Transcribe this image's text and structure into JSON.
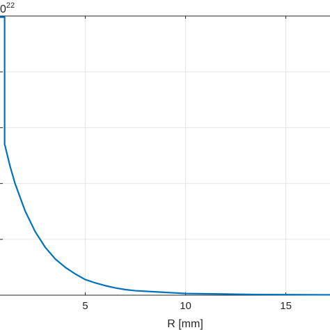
{
  "chart_data": {
    "type": "line",
    "title": "",
    "exponent_label_base": "0",
    "exponent_label_power": "22",
    "xlabel": "R [mm]",
    "ylabel": "",
    "xlim": [
      0.75,
      17.2
    ],
    "ylim": [
      0,
      5
    ],
    "xticks": [
      5,
      10,
      15
    ],
    "xtick_labels": [
      "5",
      "10",
      "15"
    ],
    "yticks": [
      0,
      1,
      2,
      3,
      4,
      5
    ],
    "grid": true,
    "colors": {
      "series": "#0072BD",
      "grid": "#e6e6e6",
      "axis": "#262626"
    },
    "series": [
      {
        "x": [
          0.75,
          0.98,
          0.98,
          1.0,
          1.25,
          1.5,
          2.0,
          2.5,
          3.0,
          3.5,
          4.0,
          4.5,
          5.0,
          5.5,
          6.0,
          6.5,
          7.0,
          7.5,
          8.0,
          9.0,
          10.0,
          11.0,
          12.0,
          13.0,
          14.0,
          15.0,
          16.0,
          17.2
        ],
        "values": [
          4.98,
          4.98,
          2.7,
          2.68,
          2.31,
          2.0,
          1.51,
          1.14,
          0.86,
          0.65,
          0.5,
          0.38,
          0.28,
          0.22,
          0.17,
          0.13,
          0.1,
          0.08,
          0.07,
          0.05,
          0.03,
          0.025,
          0.02,
          0.015,
          0.012,
          0.01,
          0.008,
          0.007
        ]
      }
    ]
  }
}
